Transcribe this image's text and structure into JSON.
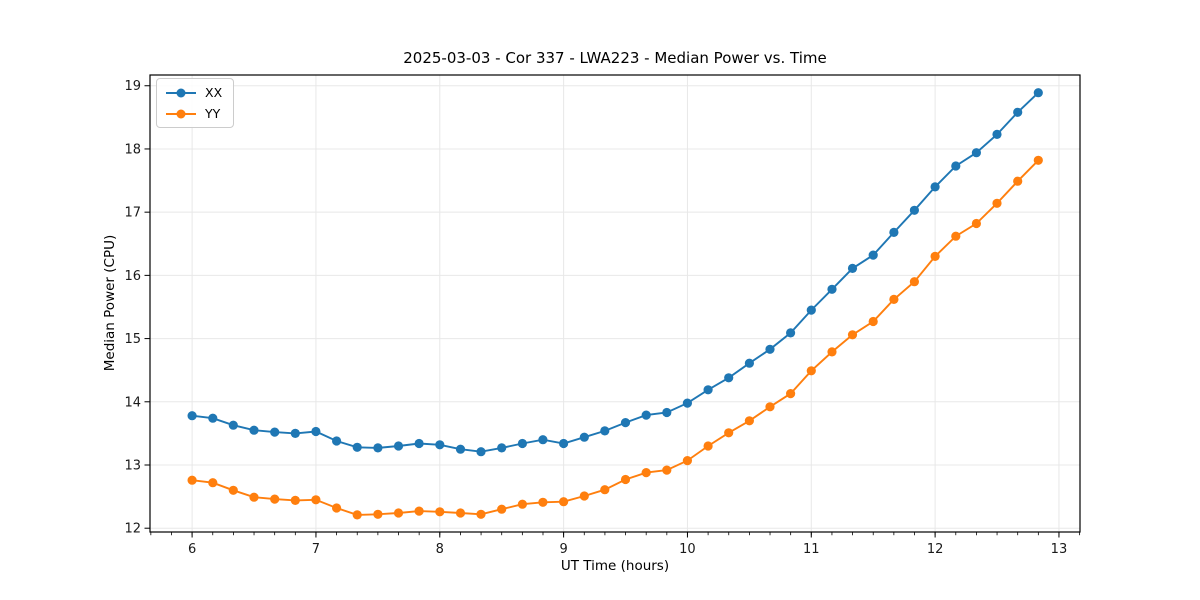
{
  "chart_data": {
    "type": "line",
    "title": "2025-03-03 - Cor 337 - LWA223 - Median Power vs. Time",
    "xlabel": "UT Time (hours)",
    "ylabel": "Median Power (CPU)",
    "x": [
      6.0,
      6.167,
      6.333,
      6.5,
      6.667,
      6.833,
      7.0,
      7.167,
      7.333,
      7.5,
      7.667,
      7.833,
      8.0,
      8.167,
      8.333,
      8.5,
      8.667,
      8.833,
      9.0,
      9.167,
      9.333,
      9.5,
      9.667,
      9.833,
      10.0,
      10.167,
      10.333,
      10.5,
      10.667,
      10.833,
      11.0,
      11.167,
      11.333,
      11.5,
      11.667,
      11.833,
      12.0,
      12.167,
      12.333,
      12.5,
      12.667,
      12.833
    ],
    "series": [
      {
        "name": "XX",
        "color": "#1f77b4",
        "values": [
          13.78,
          13.74,
          13.63,
          13.55,
          13.52,
          13.5,
          13.53,
          13.38,
          13.28,
          13.27,
          13.3,
          13.34,
          13.32,
          13.25,
          13.21,
          13.27,
          13.34,
          13.4,
          13.34,
          13.44,
          13.54,
          13.67,
          13.79,
          13.83,
          13.98,
          14.19,
          14.38,
          14.61,
          14.83,
          15.09,
          15.45,
          15.78,
          16.11,
          16.32,
          16.68,
          17.03,
          17.4,
          17.73,
          17.94,
          18.23,
          18.58,
          18.89
        ]
      },
      {
        "name": "YY",
        "color": "#ff7f0e",
        "values": [
          12.76,
          12.72,
          12.6,
          12.49,
          12.46,
          12.44,
          12.45,
          12.32,
          12.21,
          12.22,
          12.24,
          12.27,
          12.26,
          12.24,
          12.22,
          12.3,
          12.38,
          12.41,
          12.42,
          12.51,
          12.61,
          12.77,
          12.88,
          12.92,
          13.07,
          13.3,
          13.51,
          13.7,
          13.92,
          14.13,
          14.49,
          14.79,
          15.06,
          15.27,
          15.62,
          15.9,
          16.3,
          16.62,
          16.82,
          17.14,
          17.49,
          17.82
        ]
      }
    ],
    "xlim": [
      5.66,
      13.17
    ],
    "ylim": [
      11.94,
      19.17
    ],
    "xticks": [
      6,
      7,
      8,
      9,
      10,
      11,
      12,
      13
    ],
    "yticks": [
      12,
      13,
      14,
      15,
      16,
      17,
      18,
      19
    ],
    "x_minor_step": 0.16667,
    "grid": true,
    "legend_position": "upper left",
    "colors": {
      "grid": "#e8e8e8",
      "spine": "#000000",
      "tick_label": "#1a1a1a"
    }
  }
}
